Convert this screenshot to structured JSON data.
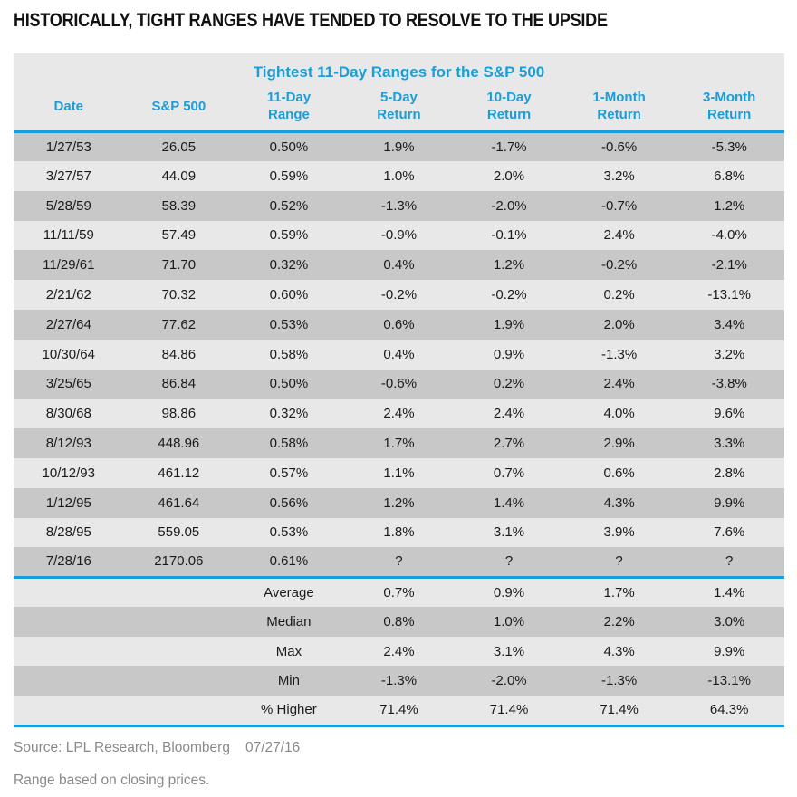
{
  "page": {
    "title": "HISTORICALLY, TIGHT RANGES HAVE TENDED TO RESOLVE TO THE UPSIDE"
  },
  "colors": {
    "accent": "#1B9DD9",
    "row_dark": "#C8C8C8",
    "row_light": "#E8E8E8",
    "text_dark": "#1A1A1A",
    "footer_gray": "#8A8A8A"
  },
  "chart_data": {
    "type": "table",
    "title": "Tightest 11-Day Ranges for the S&P 500",
    "columns": [
      "Date",
      "S&P 500",
      "11-Day Range",
      "5-Day Return",
      "10-Day Return",
      "1-Month Return",
      "3-Month Return"
    ],
    "column_headers": [
      {
        "top": "Date",
        "bottom": ""
      },
      {
        "top": "S&P 500",
        "bottom": ""
      },
      {
        "top": "11-Day",
        "bottom": "Range"
      },
      {
        "top": "5-Day",
        "bottom": "Return"
      },
      {
        "top": "10-Day",
        "bottom": "Return"
      },
      {
        "top": "1-Month",
        "bottom": "Return"
      },
      {
        "top": "3-Month",
        "bottom": "Return"
      }
    ],
    "rows": [
      [
        "1/27/53",
        "26.05",
        "0.50%",
        "1.9%",
        "-1.7%",
        "-0.6%",
        "-5.3%"
      ],
      [
        "3/27/57",
        "44.09",
        "0.59%",
        "1.0%",
        "2.0%",
        "3.2%",
        "6.8%"
      ],
      [
        "5/28/59",
        "58.39",
        "0.52%",
        "-1.3%",
        "-2.0%",
        "-0.7%",
        "1.2%"
      ],
      [
        "11/11/59",
        "57.49",
        "0.59%",
        "-0.9%",
        "-0.1%",
        "2.4%",
        "-4.0%"
      ],
      [
        "11/29/61",
        "71.70",
        "0.32%",
        "0.4%",
        "1.2%",
        "-0.2%",
        "-2.1%"
      ],
      [
        "2/21/62",
        "70.32",
        "0.60%",
        "-0.2%",
        "-0.2%",
        "0.2%",
        "-13.1%"
      ],
      [
        "2/27/64",
        "77.62",
        "0.53%",
        "0.6%",
        "1.9%",
        "2.0%",
        "3.4%"
      ],
      [
        "10/30/64",
        "84.86",
        "0.58%",
        "0.4%",
        "0.9%",
        "-1.3%",
        "3.2%"
      ],
      [
        "3/25/65",
        "86.84",
        "0.50%",
        "-0.6%",
        "0.2%",
        "2.4%",
        "-3.8%"
      ],
      [
        "8/30/68",
        "98.86",
        "0.32%",
        "2.4%",
        "2.4%",
        "4.0%",
        "9.6%"
      ],
      [
        "8/12/93",
        "448.96",
        "0.58%",
        "1.7%",
        "2.7%",
        "2.9%",
        "3.3%"
      ],
      [
        "10/12/93",
        "461.12",
        "0.57%",
        "1.1%",
        "0.7%",
        "0.6%",
        "2.8%"
      ],
      [
        "1/12/95",
        "461.64",
        "0.56%",
        "1.2%",
        "1.4%",
        "4.3%",
        "9.9%"
      ],
      [
        "8/28/95",
        "559.05",
        "0.53%",
        "1.8%",
        "3.1%",
        "3.9%",
        "7.6%"
      ],
      [
        "7/28/16",
        "2170.06",
        "0.61%",
        "?",
        "?",
        "?",
        "?"
      ]
    ],
    "summary_rows": [
      {
        "label": "Average",
        "values": [
          "0.7%",
          "0.9%",
          "1.7%",
          "1.4%"
        ]
      },
      {
        "label": "Median",
        "values": [
          "0.8%",
          "1.0%",
          "2.2%",
          "3.0%"
        ]
      },
      {
        "label": "Max",
        "values": [
          "2.4%",
          "3.1%",
          "4.3%",
          "9.9%"
        ]
      },
      {
        "label": "Min",
        "values": [
          "-1.3%",
          "-2.0%",
          "-1.3%",
          "-13.1%"
        ]
      },
      {
        "label": "% Higher",
        "values": [
          "71.4%",
          "71.4%",
          "71.4%",
          "64.3%"
        ]
      }
    ]
  },
  "footer": {
    "source": "Source: LPL Research, Bloomberg",
    "date": "07/27/16",
    "note": "Range based on closing prices."
  }
}
